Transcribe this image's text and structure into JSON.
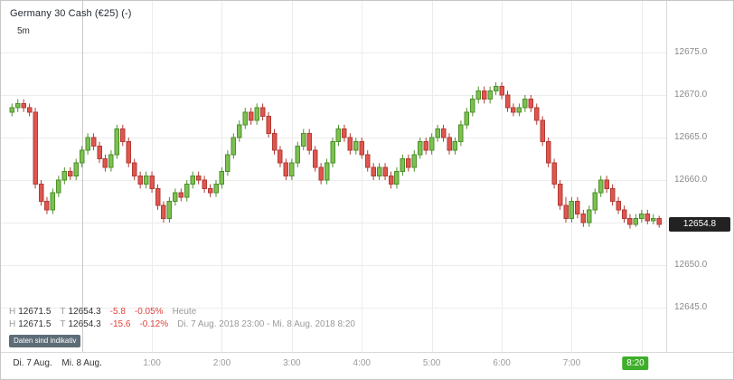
{
  "header": {
    "title": "Germany 30 Cash (€25) (-)",
    "timeframe": "5m"
  },
  "price_axis": {
    "labels": [
      {
        "price": 12675.0,
        "text": "12675.0"
      },
      {
        "price": 12670.0,
        "text": "12670.0"
      },
      {
        "price": 12665.0,
        "text": "12665.0"
      },
      {
        "price": 12660.0,
        "text": "12660.0"
      },
      {
        "price": 12650.0,
        "text": "12650.0"
      },
      {
        "price": 12645.0,
        "text": "12645.0"
      }
    ],
    "current_price_text": "12654.8"
  },
  "time_axis": {
    "day_start_label": "Di. 7 Aug.",
    "labels": [
      {
        "hour": 0,
        "text": "Mi. 8 Aug.",
        "emphasis": true
      },
      {
        "hour": 1,
        "text": "1:00"
      },
      {
        "hour": 2,
        "text": "2:00"
      },
      {
        "hour": 3,
        "text": "3:00"
      },
      {
        "hour": 4,
        "text": "4:00"
      },
      {
        "hour": 5,
        "text": "5:00"
      },
      {
        "hour": 6,
        "text": "6:00"
      },
      {
        "hour": 7,
        "text": "7:00"
      }
    ],
    "current_time_text": "8:20"
  },
  "info": {
    "rows": [
      {
        "high_label": "H",
        "high": "12671.5",
        "low_label": "T",
        "low": "12654.3",
        "change": "-5.8",
        "change_pct": "-0.05%",
        "period": "Heute"
      },
      {
        "high_label": "H",
        "high": "12671.5",
        "low_label": "T",
        "low": "12654.3",
        "change": "-15.6",
        "change_pct": "-0.12%",
        "period": "Di. 7 Aug. 2018 23:00 - Mi. 8 Aug. 2018 8:20"
      }
    ],
    "disclaimer": "Daten sind indikativ"
  },
  "ui_colors": {
    "negative": "#e0423c",
    "price_tag_bg": "#222222",
    "time_badge_bg": "#3fae2a",
    "disclaimer_bg": "#5d6d77"
  },
  "chart_data": {
    "type": "candlestick",
    "title": "Germany 30 Cash (€25)",
    "interval": "5m",
    "range_start": "Di. 7 Aug. 2018 23:00",
    "range_end": "Mi. 8 Aug. 2018 8:20",
    "session_high": 12671.5,
    "session_low": 12654.3,
    "last_price": 12654.8,
    "ylim": [
      12640,
      12681
    ],
    "y_gridlines": [
      12645,
      12650,
      12655,
      12660,
      12665,
      12670,
      12675
    ],
    "grid": true,
    "colors": {
      "up_fill": "#7cc152",
      "up_stroke": "#4d8f2a",
      "down_fill": "#e0564e",
      "down_stroke": "#b23b35",
      "grid": "#ececec",
      "day_separator": "#c9c9c9"
    },
    "candles": [
      [
        "23:00",
        12668.0,
        12669.0,
        12667.5,
        12668.5
      ],
      [
        "23:05",
        12668.5,
        12669.5,
        12668.0,
        12669.0
      ],
      [
        "23:10",
        12669.0,
        12669.5,
        12668.0,
        12668.5
      ],
      [
        "23:15",
        12668.5,
        12669.0,
        12667.5,
        12668.0
      ],
      [
        "23:20",
        12668.0,
        12668.5,
        12659.0,
        12659.5
      ],
      [
        "23:25",
        12659.5,
        12660.0,
        12657.0,
        12657.5
      ],
      [
        "23:30",
        12657.5,
        12658.0,
        12656.0,
        12656.5
      ],
      [
        "23:35",
        12656.5,
        12659.0,
        12656.0,
        12658.5
      ],
      [
        "23:40",
        12658.5,
        12660.5,
        12658.0,
        12660.0
      ],
      [
        "23:45",
        12660.0,
        12661.5,
        12659.5,
        12661.0
      ],
      [
        "23:50",
        12661.0,
        12661.5,
        12660.0,
        12660.5
      ],
      [
        "23:55",
        12660.5,
        12662.5,
        12660.0,
        12662.0
      ],
      [
        "0:00",
        12662.0,
        12664.0,
        12661.5,
        12663.5
      ],
      [
        "0:05",
        12663.5,
        12665.5,
        12663.0,
        12665.0
      ],
      [
        "0:10",
        12665.0,
        12665.5,
        12663.5,
        12664.0
      ],
      [
        "0:15",
        12664.0,
        12664.5,
        12662.0,
        12662.5
      ],
      [
        "0:20",
        12662.5,
        12663.0,
        12661.0,
        12661.5
      ],
      [
        "0:25",
        12661.5,
        12663.5,
        12661.0,
        12663.0
      ],
      [
        "0:30",
        12663.0,
        12666.5,
        12662.5,
        12666.0
      ],
      [
        "0:35",
        12666.0,
        12666.5,
        12664.0,
        12664.5
      ],
      [
        "0:40",
        12664.5,
        12665.0,
        12661.5,
        12662.0
      ],
      [
        "0:45",
        12662.0,
        12662.5,
        12660.0,
        12660.5
      ],
      [
        "0:50",
        12660.5,
        12661.0,
        12659.0,
        12659.5
      ],
      [
        "0:55",
        12659.5,
        12661.0,
        12659.0,
        12660.5
      ],
      [
        "1:00",
        12660.5,
        12661.0,
        12658.5,
        12659.0
      ],
      [
        "1:05",
        12659.0,
        12659.5,
        12656.5,
        12657.0
      ],
      [
        "1:10",
        12657.0,
        12657.5,
        12655.0,
        12655.5
      ],
      [
        "1:15",
        12655.5,
        12658.0,
        12655.0,
        12657.5
      ],
      [
        "1:20",
        12657.5,
        12659.0,
        12657.0,
        12658.5
      ],
      [
        "1:25",
        12658.5,
        12659.0,
        12657.5,
        12658.0
      ],
      [
        "1:30",
        12658.0,
        12660.0,
        12657.5,
        12659.5
      ],
      [
        "1:35",
        12659.5,
        12661.0,
        12659.0,
        12660.5
      ],
      [
        "1:40",
        12660.5,
        12661.0,
        12659.5,
        12660.0
      ],
      [
        "1:45",
        12660.0,
        12660.5,
        12658.5,
        12659.0
      ],
      [
        "1:50",
        12659.0,
        12659.5,
        12658.0,
        12658.5
      ],
      [
        "1:55",
        12658.5,
        12660.0,
        12658.0,
        12659.5
      ],
      [
        "2:00",
        12659.5,
        12661.5,
        12659.0,
        12661.0
      ],
      [
        "2:05",
        12661.0,
        12663.5,
        12660.5,
        12663.0
      ],
      [
        "2:10",
        12663.0,
        12665.5,
        12662.5,
        12665.0
      ],
      [
        "2:15",
        12665.0,
        12667.0,
        12664.5,
        12666.5
      ],
      [
        "2:20",
        12666.5,
        12668.5,
        12666.0,
        12668.0
      ],
      [
        "2:25",
        12668.0,
        12668.5,
        12666.5,
        12667.0
      ],
      [
        "2:30",
        12667.0,
        12669.0,
        12666.5,
        12668.5
      ],
      [
        "2:35",
        12668.5,
        12669.0,
        12667.0,
        12667.5
      ],
      [
        "2:40",
        12667.5,
        12668.0,
        12665.0,
        12665.5
      ],
      [
        "2:45",
        12665.5,
        12666.0,
        12663.0,
        12663.5
      ],
      [
        "2:50",
        12663.5,
        12664.0,
        12661.5,
        12662.0
      ],
      [
        "2:55",
        12662.0,
        12662.5,
        12660.0,
        12660.5
      ],
      [
        "3:00",
        12660.5,
        12662.5,
        12660.0,
        12662.0
      ],
      [
        "3:05",
        12662.0,
        12664.5,
        12661.5,
        12664.0
      ],
      [
        "3:10",
        12664.0,
        12666.0,
        12663.5,
        12665.5
      ],
      [
        "3:15",
        12665.5,
        12666.0,
        12663.0,
        12663.5
      ],
      [
        "3:20",
        12663.5,
        12664.0,
        12661.0,
        12661.5
      ],
      [
        "3:25",
        12661.5,
        12662.0,
        12659.5,
        12660.0
      ],
      [
        "3:30",
        12660.0,
        12662.5,
        12659.5,
        12662.0
      ],
      [
        "3:35",
        12662.0,
        12665.0,
        12661.5,
        12664.5
      ],
      [
        "3:40",
        12664.5,
        12666.5,
        12664.0,
        12666.0
      ],
      [
        "3:45",
        12666.0,
        12666.5,
        12664.5,
        12665.0
      ],
      [
        "3:50",
        12665.0,
        12665.5,
        12663.0,
        12663.5
      ],
      [
        "3:55",
        12663.5,
        12665.0,
        12663.0,
        12664.5
      ],
      [
        "4:00",
        12664.5,
        12665.0,
        12662.5,
        12663.0
      ],
      [
        "4:05",
        12663.0,
        12663.5,
        12661.0,
        12661.5
      ],
      [
        "4:10",
        12661.5,
        12662.0,
        12660.0,
        12660.5
      ],
      [
        "4:15",
        12660.5,
        12662.0,
        12660.0,
        12661.5
      ],
      [
        "4:20",
        12661.5,
        12662.0,
        12660.0,
        12660.5
      ],
      [
        "4:25",
        12660.5,
        12661.0,
        12659.0,
        12659.5
      ],
      [
        "4:30",
        12659.5,
        12661.5,
        12659.0,
        12661.0
      ],
      [
        "4:35",
        12661.0,
        12663.0,
        12660.5,
        12662.5
      ],
      [
        "4:40",
        12662.5,
        12663.0,
        12661.0,
        12661.5
      ],
      [
        "4:45",
        12661.5,
        12663.5,
        12661.0,
        12663.0
      ],
      [
        "4:50",
        12663.0,
        12665.0,
        12662.5,
        12664.5
      ],
      [
        "4:55",
        12664.5,
        12665.0,
        12663.0,
        12663.5
      ],
      [
        "5:00",
        12663.5,
        12665.5,
        12663.0,
        12665.0
      ],
      [
        "5:05",
        12665.0,
        12666.5,
        12664.5,
        12666.0
      ],
      [
        "5:10",
        12666.0,
        12666.5,
        12664.5,
        12665.0
      ],
      [
        "5:15",
        12665.0,
        12665.5,
        12663.0,
        12663.5
      ],
      [
        "5:20",
        12663.5,
        12665.0,
        12663.0,
        12664.5
      ],
      [
        "5:25",
        12664.5,
        12667.0,
        12664.0,
        12666.5
      ],
      [
        "5:30",
        12666.5,
        12668.5,
        12666.0,
        12668.0
      ],
      [
        "5:35",
        12668.0,
        12670.0,
        12667.5,
        12669.5
      ],
      [
        "5:40",
        12669.5,
        12671.0,
        12669.0,
        12670.5
      ],
      [
        "5:45",
        12670.5,
        12671.0,
        12669.0,
        12669.5
      ],
      [
        "5:50",
        12669.5,
        12671.0,
        12669.0,
        12670.5
      ],
      [
        "5:55",
        12670.5,
        12671.5,
        12670.0,
        12671.0
      ],
      [
        "6:00",
        12671.0,
        12671.5,
        12669.5,
        12670.0
      ],
      [
        "6:05",
        12670.0,
        12670.5,
        12668.0,
        12668.5
      ],
      [
        "6:10",
        12668.5,
        12669.0,
        12667.5,
        12668.0
      ],
      [
        "6:15",
        12668.0,
        12669.0,
        12667.5,
        12668.5
      ],
      [
        "6:20",
        12668.5,
        12670.0,
        12668.0,
        12669.5
      ],
      [
        "6:25",
        12669.5,
        12670.0,
        12668.0,
        12668.5
      ],
      [
        "6:30",
        12668.5,
        12669.0,
        12666.5,
        12667.0
      ],
      [
        "6:35",
        12667.0,
        12667.5,
        12664.0,
        12664.5
      ],
      [
        "6:40",
        12664.5,
        12665.0,
        12661.5,
        12662.0
      ],
      [
        "6:45",
        12662.0,
        12662.5,
        12659.0,
        12659.5
      ],
      [
        "6:50",
        12659.5,
        12660.0,
        12656.5,
        12657.0
      ],
      [
        "6:55",
        12657.0,
        12658.0,
        12655.0,
        12655.5
      ],
      [
        "7:00",
        12655.5,
        12658.0,
        12655.0,
        12657.5
      ],
      [
        "7:05",
        12657.5,
        12658.0,
        12655.5,
        12656.0
      ],
      [
        "7:10",
        12656.0,
        12656.5,
        12654.5,
        12655.0
      ],
      [
        "7:15",
        12655.0,
        12657.0,
        12654.5,
        12656.5
      ],
      [
        "7:20",
        12656.5,
        12659.0,
        12656.0,
        12658.5
      ],
      [
        "7:25",
        12658.5,
        12660.5,
        12658.0,
        12660.0
      ],
      [
        "7:30",
        12660.0,
        12660.5,
        12658.5,
        12659.0
      ],
      [
        "7:35",
        12659.0,
        12659.5,
        12657.0,
        12657.5
      ],
      [
        "7:40",
        12657.5,
        12658.0,
        12656.0,
        12656.5
      ],
      [
        "7:45",
        12656.5,
        12657.0,
        12655.0,
        12655.5
      ],
      [
        "7:50",
        12655.5,
        12656.0,
        12654.3,
        12654.8
      ],
      [
        "7:55",
        12654.8,
        12656.0,
        12654.5,
        12655.5
      ],
      [
        "8:00",
        12655.5,
        12656.5,
        12655.0,
        12656.0
      ],
      [
        "8:05",
        12656.0,
        12656.5,
        12654.8,
        12655.2
      ],
      [
        "8:10",
        12655.2,
        12656.0,
        12654.8,
        12655.5
      ],
      [
        "8:15",
        12655.5,
        12655.8,
        12654.4,
        12654.8
      ]
    ]
  }
}
